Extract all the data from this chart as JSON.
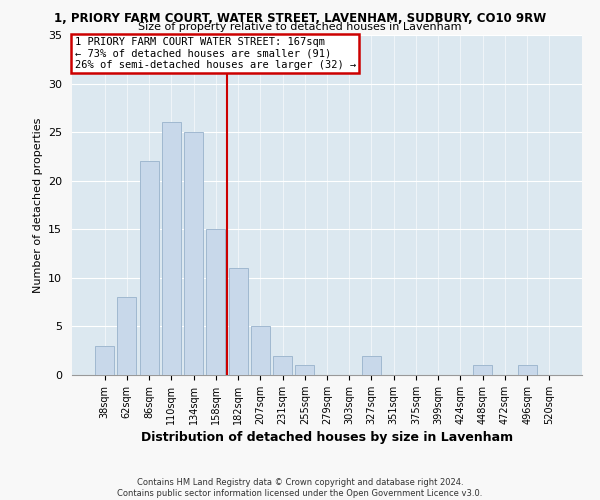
{
  "title_line1": "1, PRIORY FARM COURT, WATER STREET, LAVENHAM, SUDBURY, CO10 9RW",
  "title_line2": "Size of property relative to detached houses in Lavenham",
  "xlabel": "Distribution of detached houses by size in Lavenham",
  "ylabel": "Number of detached properties",
  "categories": [
    "38sqm",
    "62sqm",
    "86sqm",
    "110sqm",
    "134sqm",
    "158sqm",
    "182sqm",
    "207sqm",
    "231sqm",
    "255sqm",
    "279sqm",
    "303sqm",
    "327sqm",
    "351sqm",
    "375sqm",
    "399sqm",
    "424sqm",
    "448sqm",
    "472sqm",
    "496sqm",
    "520sqm"
  ],
  "values": [
    3,
    8,
    22,
    26,
    25,
    15,
    11,
    5,
    2,
    1,
    0,
    0,
    2,
    0,
    0,
    0,
    0,
    1,
    0,
    1,
    0
  ],
  "bar_color": "#c8d8ea",
  "bar_edge_color": "#a0b8d0",
  "property_line_x": 5.5,
  "property_label": "1 PRIORY FARM COURT WATER STREET: 167sqm",
  "annotation_line1": "← 73% of detached houses are smaller (91)",
  "annotation_line2": "26% of semi-detached houses are larger (32) →",
  "vline_color": "#cc0000",
  "box_edge_color": "#cc0000",
  "ylim": [
    0,
    35
  ],
  "yticks": [
    0,
    5,
    10,
    15,
    20,
    25,
    30,
    35
  ],
  "footer_line1": "Contains HM Land Registry data © Crown copyright and database right 2024.",
  "footer_line2": "Contains public sector information licensed under the Open Government Licence v3.0.",
  "bg_color": "#dce8f0",
  "fig_bg_color": "#f8f8f8"
}
